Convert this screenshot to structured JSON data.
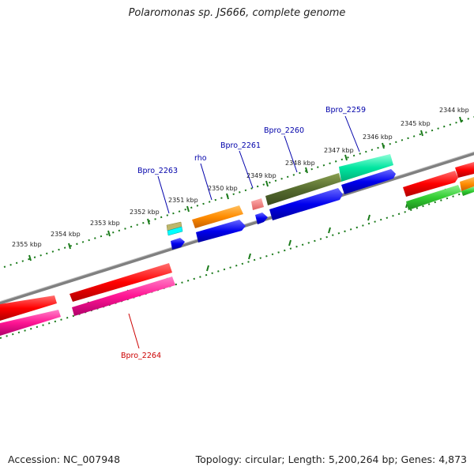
{
  "title": "Polaromonas sp. JS666, complete genome",
  "footer": {
    "accession": "Accession: NC_007948",
    "summary": "Topology: circular; Length: 5,200,264 bp; Genes: 4,873"
  },
  "colors": {
    "backbone": "#808080",
    "tick": "#1a7a1a",
    "label_forward": "#0000aa",
    "label_reverse": "#cc0000"
  },
  "scale_labels": [
    "2344 kbp",
    "2345 kbp",
    "2346 kbp",
    "2347 kbp",
    "2348 kbp",
    "2349 kbp",
    "2350 kbp",
    "2351 kbp",
    "2352 kbp",
    "2353 kbp",
    "2354 kbp",
    "2355 kbp"
  ],
  "gene_labels": [
    {
      "name": "Bpro_2259",
      "strand": "forward"
    },
    {
      "name": "Bpro_2260",
      "strand": "forward"
    },
    {
      "name": "Bpro_2261",
      "strand": "forward"
    },
    {
      "name": "rho",
      "strand": "forward"
    },
    {
      "name": "Bpro_2263",
      "strand": "forward"
    },
    {
      "name": "Bpro_2264",
      "strand": "reverse"
    }
  ],
  "feature_colors": [
    "#0000ee",
    "#ff8c00",
    "#556b2f",
    "#00e5a0",
    "#ff0000",
    "#ff1493",
    "#32cd32",
    "#f08080",
    "#bdb76b",
    "#00ffff"
  ]
}
